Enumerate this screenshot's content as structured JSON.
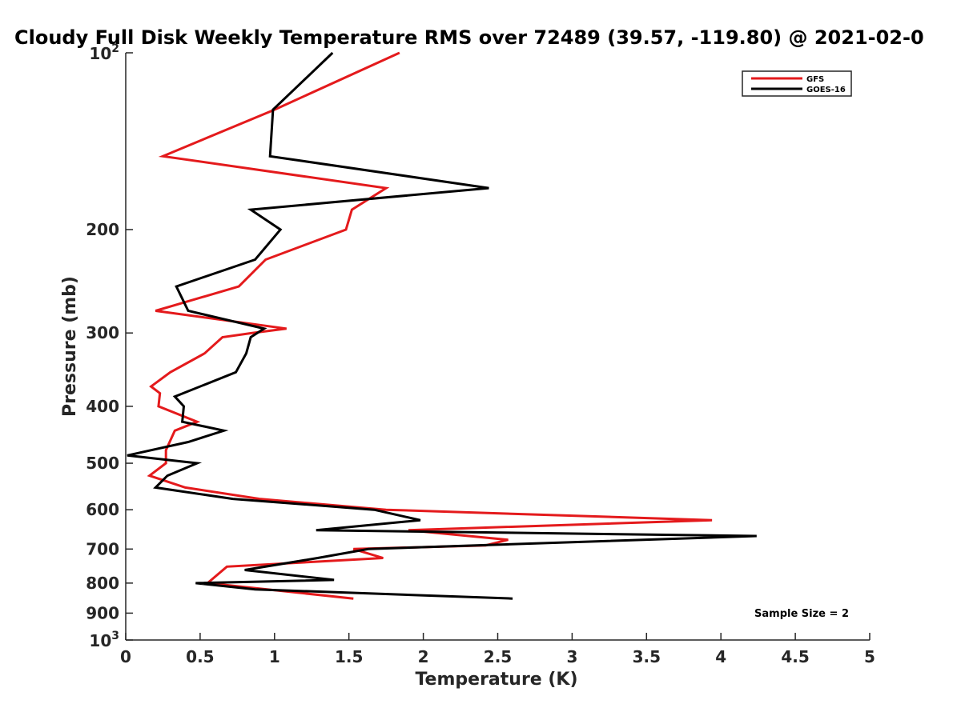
{
  "chart_data": {
    "type": "line",
    "title": "Cloudy Full Disk Weekly Temperature RMS over 72489 (39.57, -119.80) @ 2021-02-0",
    "xlabel": "Temperature (K)",
    "ylabel": "Pressure (mb)",
    "xlim": [
      0,
      5
    ],
    "ylim": [
      100,
      1000
    ],
    "y_scale": "log",
    "y_reversed": true,
    "x_ticks": [
      "0",
      "0.5",
      "1",
      "1.5",
      "2",
      "2.5",
      "3",
      "3.5",
      "4",
      "4.5",
      "5"
    ],
    "y_ticks": [
      {
        "value": 100,
        "base": "10",
        "exp": "2"
      },
      {
        "value": 200,
        "label": "200"
      },
      {
        "value": 300,
        "label": "300"
      },
      {
        "value": 400,
        "label": "400"
      },
      {
        "value": 500,
        "label": "500"
      },
      {
        "value": 600,
        "label": "600"
      },
      {
        "value": 700,
        "label": "700"
      },
      {
        "value": 800,
        "label": "800"
      },
      {
        "value": 900,
        "label": "900"
      },
      {
        "value": 1000,
        "base": "10",
        "exp": "3"
      }
    ],
    "grid": false,
    "legend": {
      "placement": "top-right"
    },
    "annotation": "Sample Size = 2",
    "series": [
      {
        "name": "GFS",
        "color": "#e41a1c",
        "points": [
          {
            "t": 1.84,
            "p": 100
          },
          {
            "t": 1.0,
            "p": 125
          },
          {
            "t": 0.25,
            "p": 150
          },
          {
            "t": 1.75,
            "p": 170
          },
          {
            "t": 1.52,
            "p": 185
          },
          {
            "t": 1.48,
            "p": 200
          },
          {
            "t": 0.94,
            "p": 225
          },
          {
            "t": 0.76,
            "p": 250
          },
          {
            "t": 0.2,
            "p": 275
          },
          {
            "t": 1.08,
            "p": 295
          },
          {
            "t": 0.85,
            "p": 300
          },
          {
            "t": 0.65,
            "p": 305
          },
          {
            "t": 0.53,
            "p": 325
          },
          {
            "t": 0.3,
            "p": 350
          },
          {
            "t": 0.17,
            "p": 370
          },
          {
            "t": 0.23,
            "p": 380
          },
          {
            "t": 0.22,
            "p": 400
          },
          {
            "t": 0.48,
            "p": 425
          },
          {
            "t": 0.33,
            "p": 440
          },
          {
            "t": 0.27,
            "p": 475
          },
          {
            "t": 0.27,
            "p": 500
          },
          {
            "t": 0.16,
            "p": 525
          },
          {
            "t": 0.4,
            "p": 550
          },
          {
            "t": 0.9,
            "p": 575
          },
          {
            "t": 1.75,
            "p": 600
          },
          {
            "t": 3.94,
            "p": 625
          },
          {
            "t": 1.9,
            "p": 650
          },
          {
            "t": 2.57,
            "p": 675
          },
          {
            "t": 2.42,
            "p": 690
          },
          {
            "t": 1.53,
            "p": 700
          },
          {
            "t": 1.73,
            "p": 725
          },
          {
            "t": 0.68,
            "p": 750
          },
          {
            "t": 0.55,
            "p": 800
          },
          {
            "t": 1.53,
            "p": 850
          }
        ]
      },
      {
        "name": "GOES-16",
        "color": "#000000",
        "points": [
          {
            "t": 1.39,
            "p": 100
          },
          {
            "t": 0.99,
            "p": 125
          },
          {
            "t": 0.97,
            "p": 150
          },
          {
            "t": 2.44,
            "p": 170
          },
          {
            "t": 0.84,
            "p": 185
          },
          {
            "t": 1.04,
            "p": 200
          },
          {
            "t": 0.87,
            "p": 225
          },
          {
            "t": 0.34,
            "p": 250
          },
          {
            "t": 0.42,
            "p": 275
          },
          {
            "t": 0.93,
            "p": 295
          },
          {
            "t": 0.84,
            "p": 305
          },
          {
            "t": 0.81,
            "p": 325
          },
          {
            "t": 0.74,
            "p": 350
          },
          {
            "t": 0.33,
            "p": 385
          },
          {
            "t": 0.39,
            "p": 400
          },
          {
            "t": 0.38,
            "p": 425
          },
          {
            "t": 0.66,
            "p": 440
          },
          {
            "t": 0.42,
            "p": 460
          },
          {
            "t": 0.01,
            "p": 485
          },
          {
            "t": 0.48,
            "p": 500
          },
          {
            "t": 0.28,
            "p": 525
          },
          {
            "t": 0.2,
            "p": 550
          },
          {
            "t": 0.72,
            "p": 575
          },
          {
            "t": 1.67,
            "p": 600
          },
          {
            "t": 1.98,
            "p": 625
          },
          {
            "t": 1.28,
            "p": 650
          },
          {
            "t": 4.24,
            "p": 665
          },
          {
            "t": 1.63,
            "p": 700
          },
          {
            "t": 1.29,
            "p": 725
          },
          {
            "t": 0.8,
            "p": 760
          },
          {
            "t": 1.4,
            "p": 790
          },
          {
            "t": 0.47,
            "p": 800
          },
          {
            "t": 0.87,
            "p": 820
          },
          {
            "t": 2.6,
            "p": 850
          }
        ]
      }
    ]
  }
}
